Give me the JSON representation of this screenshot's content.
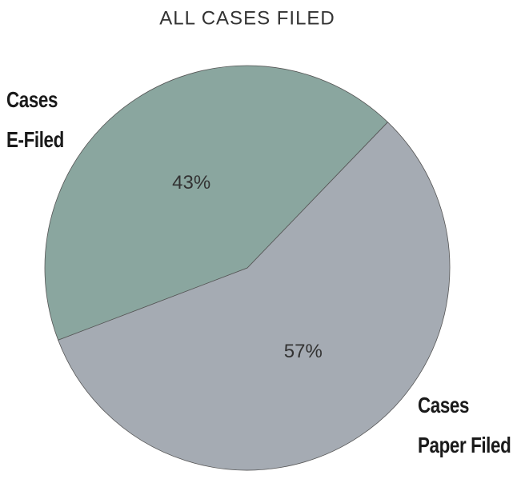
{
  "chart_data": {
    "type": "pie",
    "title": "ALL CASES FILED",
    "categories": [
      "Cases Paper Filed",
      "Cases E-Filed"
    ],
    "values": [
      57,
      43
    ],
    "value_labels": [
      "57%",
      "43%"
    ],
    "colors": [
      "#a5abb3",
      "#8aa69f"
    ]
  }
}
